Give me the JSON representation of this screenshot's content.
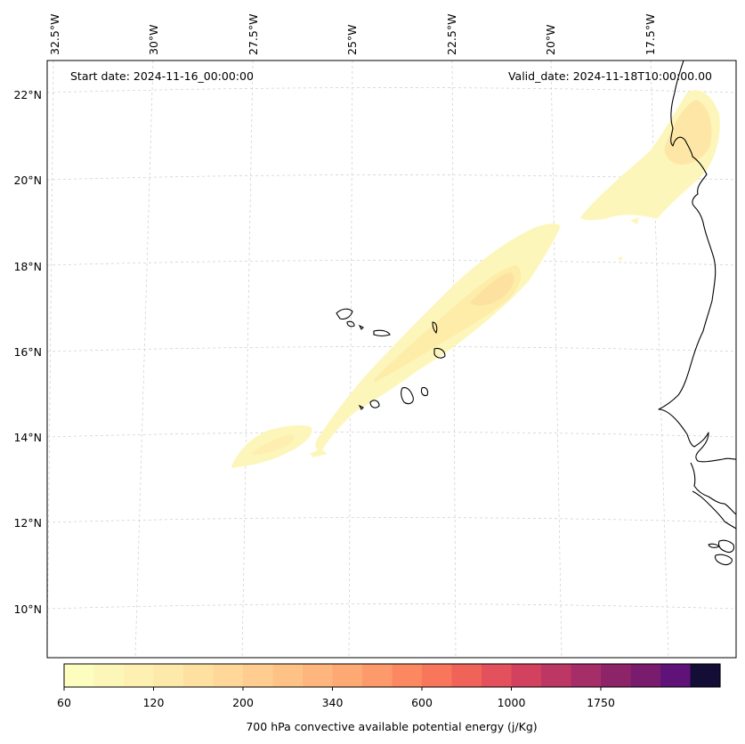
{
  "header": {
    "start_date": "Start date: 2024-11-16_00:00:00",
    "valid_date": "Valid_date: 2024-11-18T10:00:00.00"
  },
  "axes": {
    "lon_labels": [
      "32.5°W",
      "30°W",
      "27.5°W",
      "25°W",
      "22.5°W",
      "20°W",
      "17.5°W"
    ],
    "lat_labels": [
      "22°N",
      "20°N",
      "18°N",
      "16°N",
      "14°N",
      "12°N",
      "10°N"
    ]
  },
  "colorbar": {
    "label": "700 hPa convective available potential energy (j/Kg)",
    "tick_labels": [
      "60",
      "120",
      "200",
      "340",
      "600",
      "1000",
      "1750"
    ],
    "colors": [
      "#fcfdbf",
      "#fcf7b9",
      "#fdf0b1",
      "#fde9aa",
      "#fee1a0",
      "#fed799",
      "#fecd8f",
      "#fec287",
      "#feb67e",
      "#fea874",
      "#fd9a6b",
      "#fb8861",
      "#f7765c",
      "#f06359",
      "#e3525c",
      "#d2425f",
      "#bd3764",
      "#a62e68",
      "#8e2468",
      "#7a1c6d",
      "#5f1378",
      "#140e36"
    ]
  },
  "map": {
    "field": "convective available potential energy",
    "level": "700 hPa",
    "colormap": "magma_r",
    "max_value_in_region_approx": 200
  }
}
